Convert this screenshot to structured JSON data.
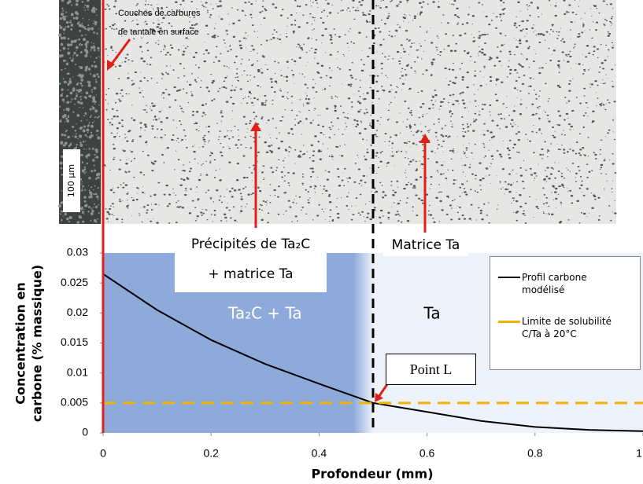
{
  "chart_data": {
    "type": "line",
    "x_label": "Profondeur (mm)",
    "y_label_lines": [
      "Concentration en",
      "carbone (% massique)"
    ],
    "x": [
      0,
      0.1,
      0.2,
      0.3,
      0.4,
      0.5,
      0.6,
      0.7,
      0.8,
      0.9,
      1
    ],
    "series": [
      {
        "name": "Profil carbone modélisé",
        "color": "#000000",
        "style": "solid",
        "values": [
          0.0265,
          0.0205,
          0.0155,
          0.0115,
          0.0082,
          0.005,
          0.0035,
          0.002,
          0.001,
          0.0005,
          0.0003
        ]
      },
      {
        "name": "Limite de solubilité C/Ta à 20°C",
        "color": "#f0b400",
        "style": "dashed",
        "values": [
          0.005,
          0.005,
          0.005,
          0.005,
          0.005,
          0.005,
          0.005,
          0.005,
          0.005,
          0.005,
          0.005
        ]
      }
    ],
    "xlim": [
      0,
      1
    ],
    "xticks": [
      0,
      0.2,
      0.4,
      0.6,
      0.8,
      1
    ],
    "ylim": [
      0,
      0.03
    ],
    "yticks": [
      0,
      0.005,
      0.01,
      0.015,
      0.02,
      0.025,
      0.03
    ],
    "region_labels": [
      "Ta₂C + Ta",
      "Ta"
    ],
    "point_annotation": {
      "label": "Point L",
      "x": 0.5,
      "y": 0.005
    },
    "micrograph": {
      "surface_label_lines": [
        "Couches de carbures",
        "de tantale en surface"
      ],
      "scale_bar": "100 µm",
      "zone_label_lines": [
        "Précipités de Ta₂C",
        "+ matrice Ta"
      ],
      "matrix_label": "Matrice Ta"
    }
  }
}
